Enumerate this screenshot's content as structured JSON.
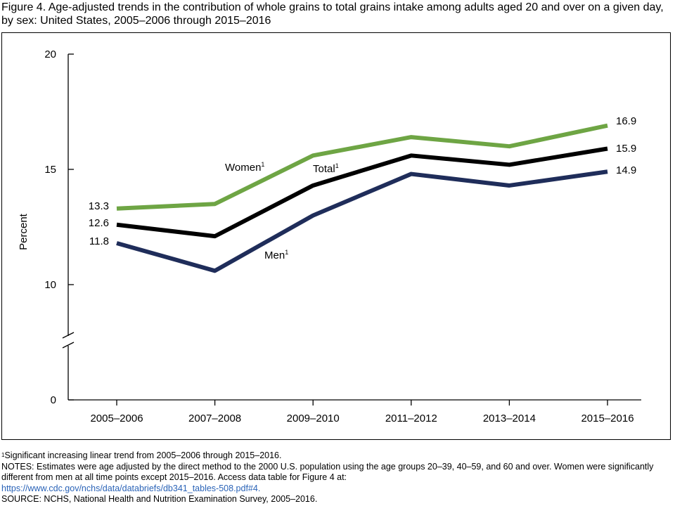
{
  "title": "Figure 4. Age-adjusted trends in the contribution of whole grains to total grains intake among adults aged 20 and over on a given day, by sex: United States, 2005–2006 through 2015–2016",
  "colors": {
    "women": "#6ea544",
    "total": "#000000",
    "men": "#1f2d5a"
  },
  "chart_data": {
    "type": "line",
    "categories": [
      "2005–2006",
      "2007–2008",
      "2009–2010",
      "2011–2012",
      "2013–2014",
      "2015–2016"
    ],
    "ylabel": "Percent",
    "ylim": [
      0,
      20
    ],
    "yticks": [
      "0",
      "10",
      "15",
      "20"
    ],
    "axis_break": true,
    "series": [
      {
        "name": "Women",
        "superscript": "1",
        "color": "#6ea544",
        "values": [
          13.3,
          13.5,
          15.6,
          16.4,
          16.0,
          16.9
        ]
      },
      {
        "name": "Total",
        "superscript": "1",
        "color": "#000000",
        "values": [
          12.6,
          12.1,
          14.3,
          15.6,
          15.2,
          15.9
        ]
      },
      {
        "name": "Men",
        "superscript": "1",
        "color": "#1f2d5a",
        "values": [
          11.8,
          10.6,
          13.0,
          14.8,
          14.3,
          14.9
        ]
      }
    ],
    "data_labels": [
      "13.3",
      "12.6",
      "11.8",
      "16.9",
      "15.9",
      "14.9"
    ]
  },
  "footnotes": {
    "sig_mark": "1",
    "sig_text": "Significant increasing linear trend from 2005–2006 through 2015–2016.",
    "notes_text": "NOTES: Estimates were age adjusted by the direct method to the 2000 U.S. population using the age groups 20–39, 40–59, and 60 and over. Women were significantly different from men at all time points except 2015–2016. Access data table for Figure 4 at:",
    "link": "https://www.cdc.gov/nchs/data/databriefs/db341_tables-508.pdf#4.",
    "source": "SOURCE: NCHS, National Health and Nutrition Examination Survey, 2005–2016."
  }
}
